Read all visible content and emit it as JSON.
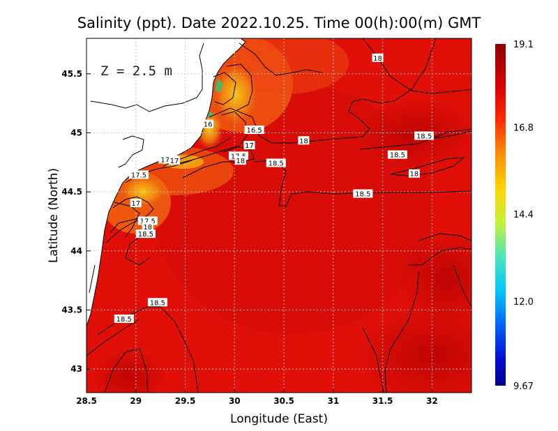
{
  "chart_data": {
    "type": "heatmap",
    "title": "Salinity (ppt). Date 2022.10.25. Time 00(h):00(m) GMT",
    "xlabel": "Longitude (East)",
    "ylabel": "Latitude (North)",
    "annotation": "Z = 2.5 m",
    "xlim": [
      28.5,
      32.4
    ],
    "ylim": [
      42.8,
      45.8
    ],
    "xticks": [
      "28.5",
      "29",
      "29.5",
      "30",
      "30.5",
      "31",
      "31.5",
      "32"
    ],
    "yticks": [
      "43",
      "43.5",
      "44",
      "44.5",
      "45",
      "45.5"
    ],
    "colorbar": {
      "min": 9.67,
      "max": 19.1,
      "ticks": [
        "19.1",
        "16.8",
        "14.4",
        "12.0",
        "9.67"
      ]
    },
    "contour_labels": [
      {
        "text": "18",
        "x": 31.45,
        "y": 45.63
      },
      {
        "text": "18.5",
        "x": 31.92,
        "y": 44.97
      },
      {
        "text": "18.5",
        "x": 31.65,
        "y": 44.81
      },
      {
        "text": "18",
        "x": 31.82,
        "y": 44.65
      },
      {
        "text": "18.5",
        "x": 31.3,
        "y": 44.48
      },
      {
        "text": "18",
        "x": 30.7,
        "y": 44.93
      },
      {
        "text": "18.5",
        "x": 30.42,
        "y": 44.74
      },
      {
        "text": "16.5",
        "x": 30.2,
        "y": 45.02
      },
      {
        "text": "17",
        "x": 30.15,
        "y": 44.89
      },
      {
        "text": "17.5",
        "x": 30.04,
        "y": 44.8
      },
      {
        "text": "18",
        "x": 30.06,
        "y": 44.76
      },
      {
        "text": "16",
        "x": 29.73,
        "y": 45.07
      },
      {
        "text": "17.5",
        "x": 29.33,
        "y": 44.77
      },
      {
        "text": "17",
        "x": 29.39,
        "y": 44.76
      },
      {
        "text": "17.5",
        "x": 29.03,
        "y": 44.64
      },
      {
        "text": "17",
        "x": 29.0,
        "y": 44.4
      },
      {
        "text": "17.5",
        "x": 29.12,
        "y": 44.25
      },
      {
        "text": "18",
        "x": 29.12,
        "y": 44.2
      },
      {
        "text": "18.5",
        "x": 29.1,
        "y": 44.14
      },
      {
        "text": "18.5",
        "x": 29.22,
        "y": 43.56
      },
      {
        "text": "18.5",
        "x": 28.88,
        "y": 43.42
      }
    ]
  }
}
